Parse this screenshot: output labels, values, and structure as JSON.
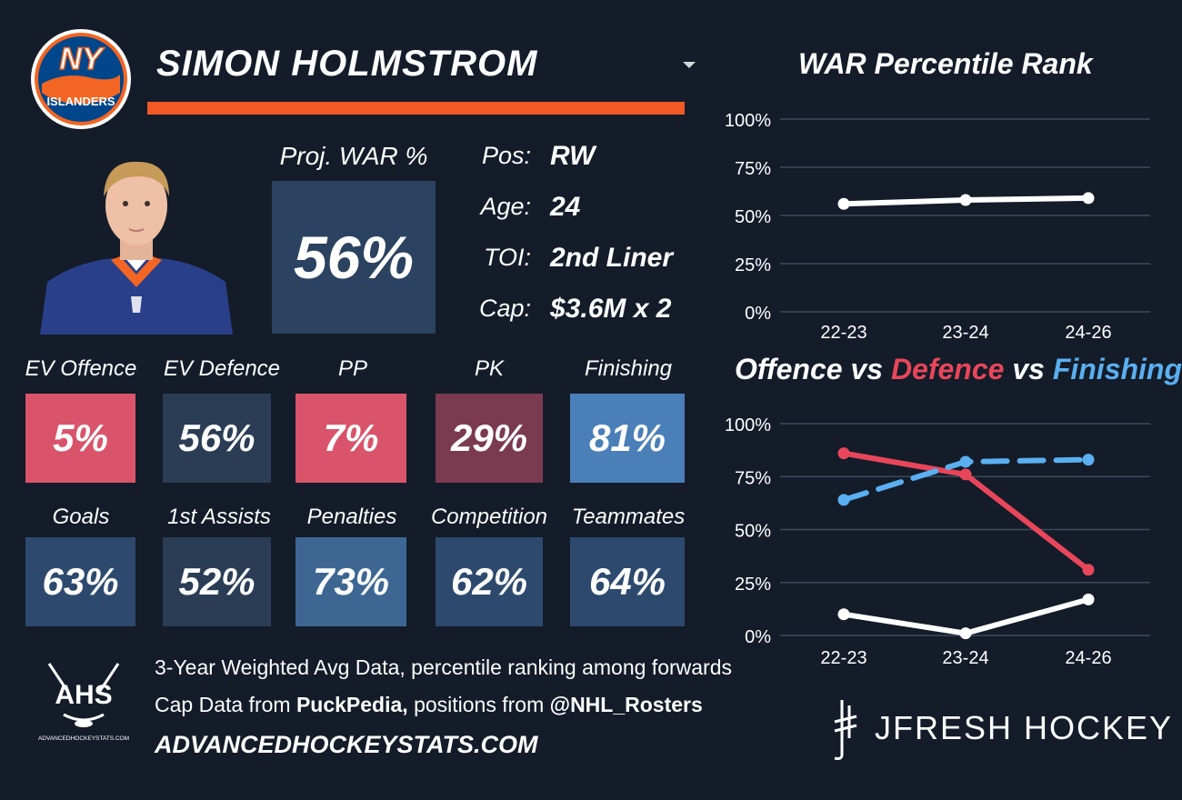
{
  "header": {
    "player_name": "SIMON HOLMSTROM",
    "team_logo": {
      "top": "NY",
      "bottom": "ISLANDERS"
    }
  },
  "projection": {
    "label": "Proj. WAR %",
    "value": "56%"
  },
  "info": [
    {
      "label": "Pos:",
      "value": "RW"
    },
    {
      "label": "Age:",
      "value": "24"
    },
    {
      "label": "TOI:",
      "value": "2nd Liner"
    },
    {
      "label": "Cap:",
      "value": "$3.6M x 2"
    }
  ],
  "metrics_row1": [
    {
      "label": "EV Offence",
      "value": "5%",
      "color": "#d9546a"
    },
    {
      "label": "EV Defence",
      "value": "56%",
      "color": "#2b3d55"
    },
    {
      "label": "PP",
      "value": "7%",
      "color": "#d9546a"
    },
    {
      "label": "PK",
      "value": "29%",
      "color": "#7a3a50"
    },
    {
      "label": "Finishing",
      "value": "81%",
      "color": "#4a7fb8"
    }
  ],
  "metrics_row2": [
    {
      "label": "Goals",
      "value": "63%",
      "color": "#2d4a6e"
    },
    {
      "label": "1st Assists",
      "value": "52%",
      "color": "#2b3d55"
    },
    {
      "label": "Penalties",
      "value": "73%",
      "color": "#3d6792"
    },
    {
      "label": "Competition",
      "value": "62%",
      "color": "#2d4a6e"
    },
    {
      "label": "Teammates",
      "value": "64%",
      "color": "#2d4a6e"
    }
  ],
  "footer": {
    "ahs_logo_text": "AHS",
    "ahs_logo_caption": "ADVANCEDHOCKEYSTATS.COM",
    "line1": "3-Year Weighted Avg Data, percentile ranking among forwards",
    "line2_prefix": "Cap Data from ",
    "line2_source1": "PuckPedia,",
    "line2_middle": " positions from ",
    "line2_source2": "@NHL_Rosters",
    "site": "ADVANCEDHOCKEYSTATS.COM",
    "brand": "JFRESH HOCKEY"
  },
  "colors": {
    "background": "#141c29",
    "accent_orange": "#f15a24",
    "defence_red": "#e8465a",
    "finishing_blue": "#5aaff0"
  },
  "chart_data": [
    {
      "type": "line",
      "title": "WAR Percentile Rank",
      "categories": [
        "22-23",
        "23-24",
        "24-26"
      ],
      "ylim": [
        0,
        100
      ],
      "yticks": [
        "0%",
        "25%",
        "50%",
        "75%",
        "100%"
      ],
      "series": [
        {
          "values": [
            56,
            58,
            59
          ],
          "color": "#ffffff",
          "style": "solid"
        }
      ]
    },
    {
      "type": "line",
      "title": {
        "part1": "Offence",
        "vs1": " vs ",
        "part2": "Defence",
        "vs2": " vs ",
        "part3": "Finishing"
      },
      "categories": [
        "22-23",
        "23-24",
        "24-26"
      ],
      "ylim": [
        0,
        100
      ],
      "yticks": [
        "0%",
        "25%",
        "50%",
        "75%",
        "100%"
      ],
      "series": [
        {
          "name": "Defence",
          "values": [
            86,
            76,
            31
          ],
          "color": "#e8465a",
          "style": "solid"
        },
        {
          "name": "Finishing",
          "values": [
            64,
            82,
            83
          ],
          "color": "#5aaff0",
          "style": "dashed"
        },
        {
          "name": "Offence",
          "values": [
            10,
            1,
            17
          ],
          "color": "#ffffff",
          "style": "solid"
        }
      ]
    }
  ]
}
